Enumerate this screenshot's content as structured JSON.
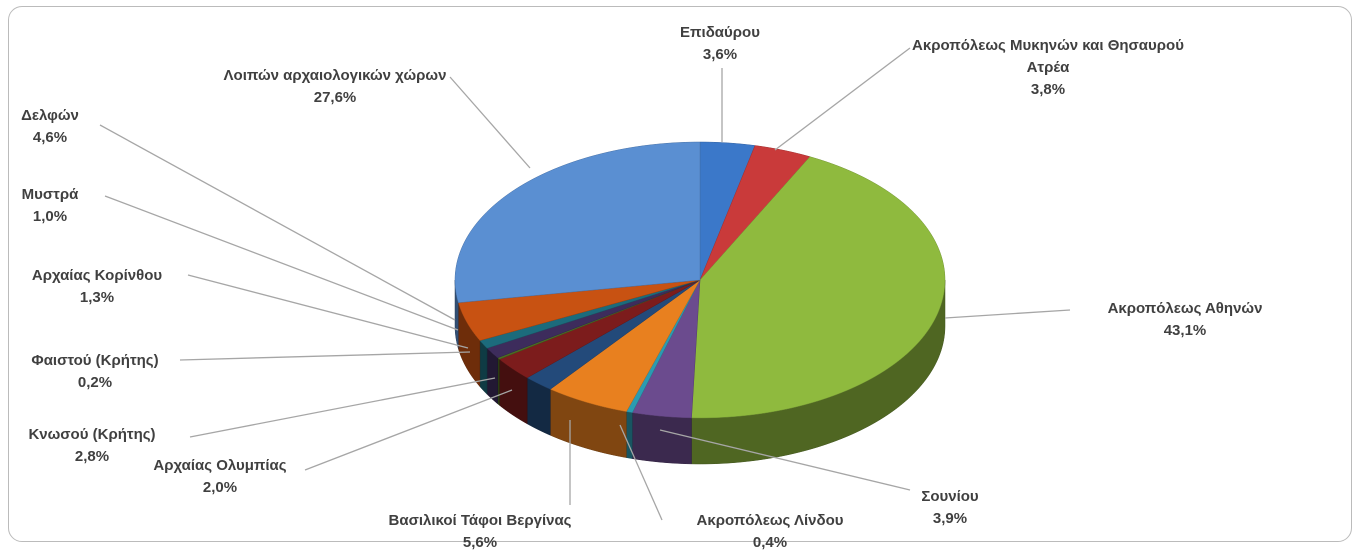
{
  "chart_data": {
    "type": "pie",
    "categories": [
      "Επιδαύρου",
      "Ακροπόλεως Μυκηνών και Θησαυρού Ατρέα",
      "Ακροπόλεως Αθηνών",
      "Σουνίου",
      "Ακροπόλεως Λίνδου",
      "Βασιλικοί Τάφοι Βεργίνας",
      "Αρχαίας Ολυμπίας",
      "Κνωσού (Κρήτης)",
      "Φαιστού (Κρήτης)",
      "Αρχαίας Κορίνθου",
      "Μυστρά",
      "Δελφών",
      "Λοιπών αρχαιολογικών χώρων"
    ],
    "values": [
      3.6,
      3.8,
      43.1,
      3.9,
      0.4,
      5.6,
      2.0,
      2.8,
      0.2,
      1.3,
      1.0,
      4.6,
      27.6
    ],
    "value_labels": [
      "3,6%",
      "3,8%",
      "43,1%",
      "3,9%",
      "0,4%",
      "5,6%",
      "2,0%",
      "2,8%",
      "0,2%",
      "1,3%",
      "1,0%",
      "4,6%",
      "27,6%"
    ],
    "colors": [
      "#3b78c9",
      "#c93a3a",
      "#8fba3e",
      "#6b4b8e",
      "#2b9bb1",
      "#e8801f",
      "#234a7a",
      "#7c1c1c",
      "#4c6c22",
      "#3d2c5c",
      "#1c6b7c",
      "#c85212",
      "#5a8fd2"
    ]
  }
}
